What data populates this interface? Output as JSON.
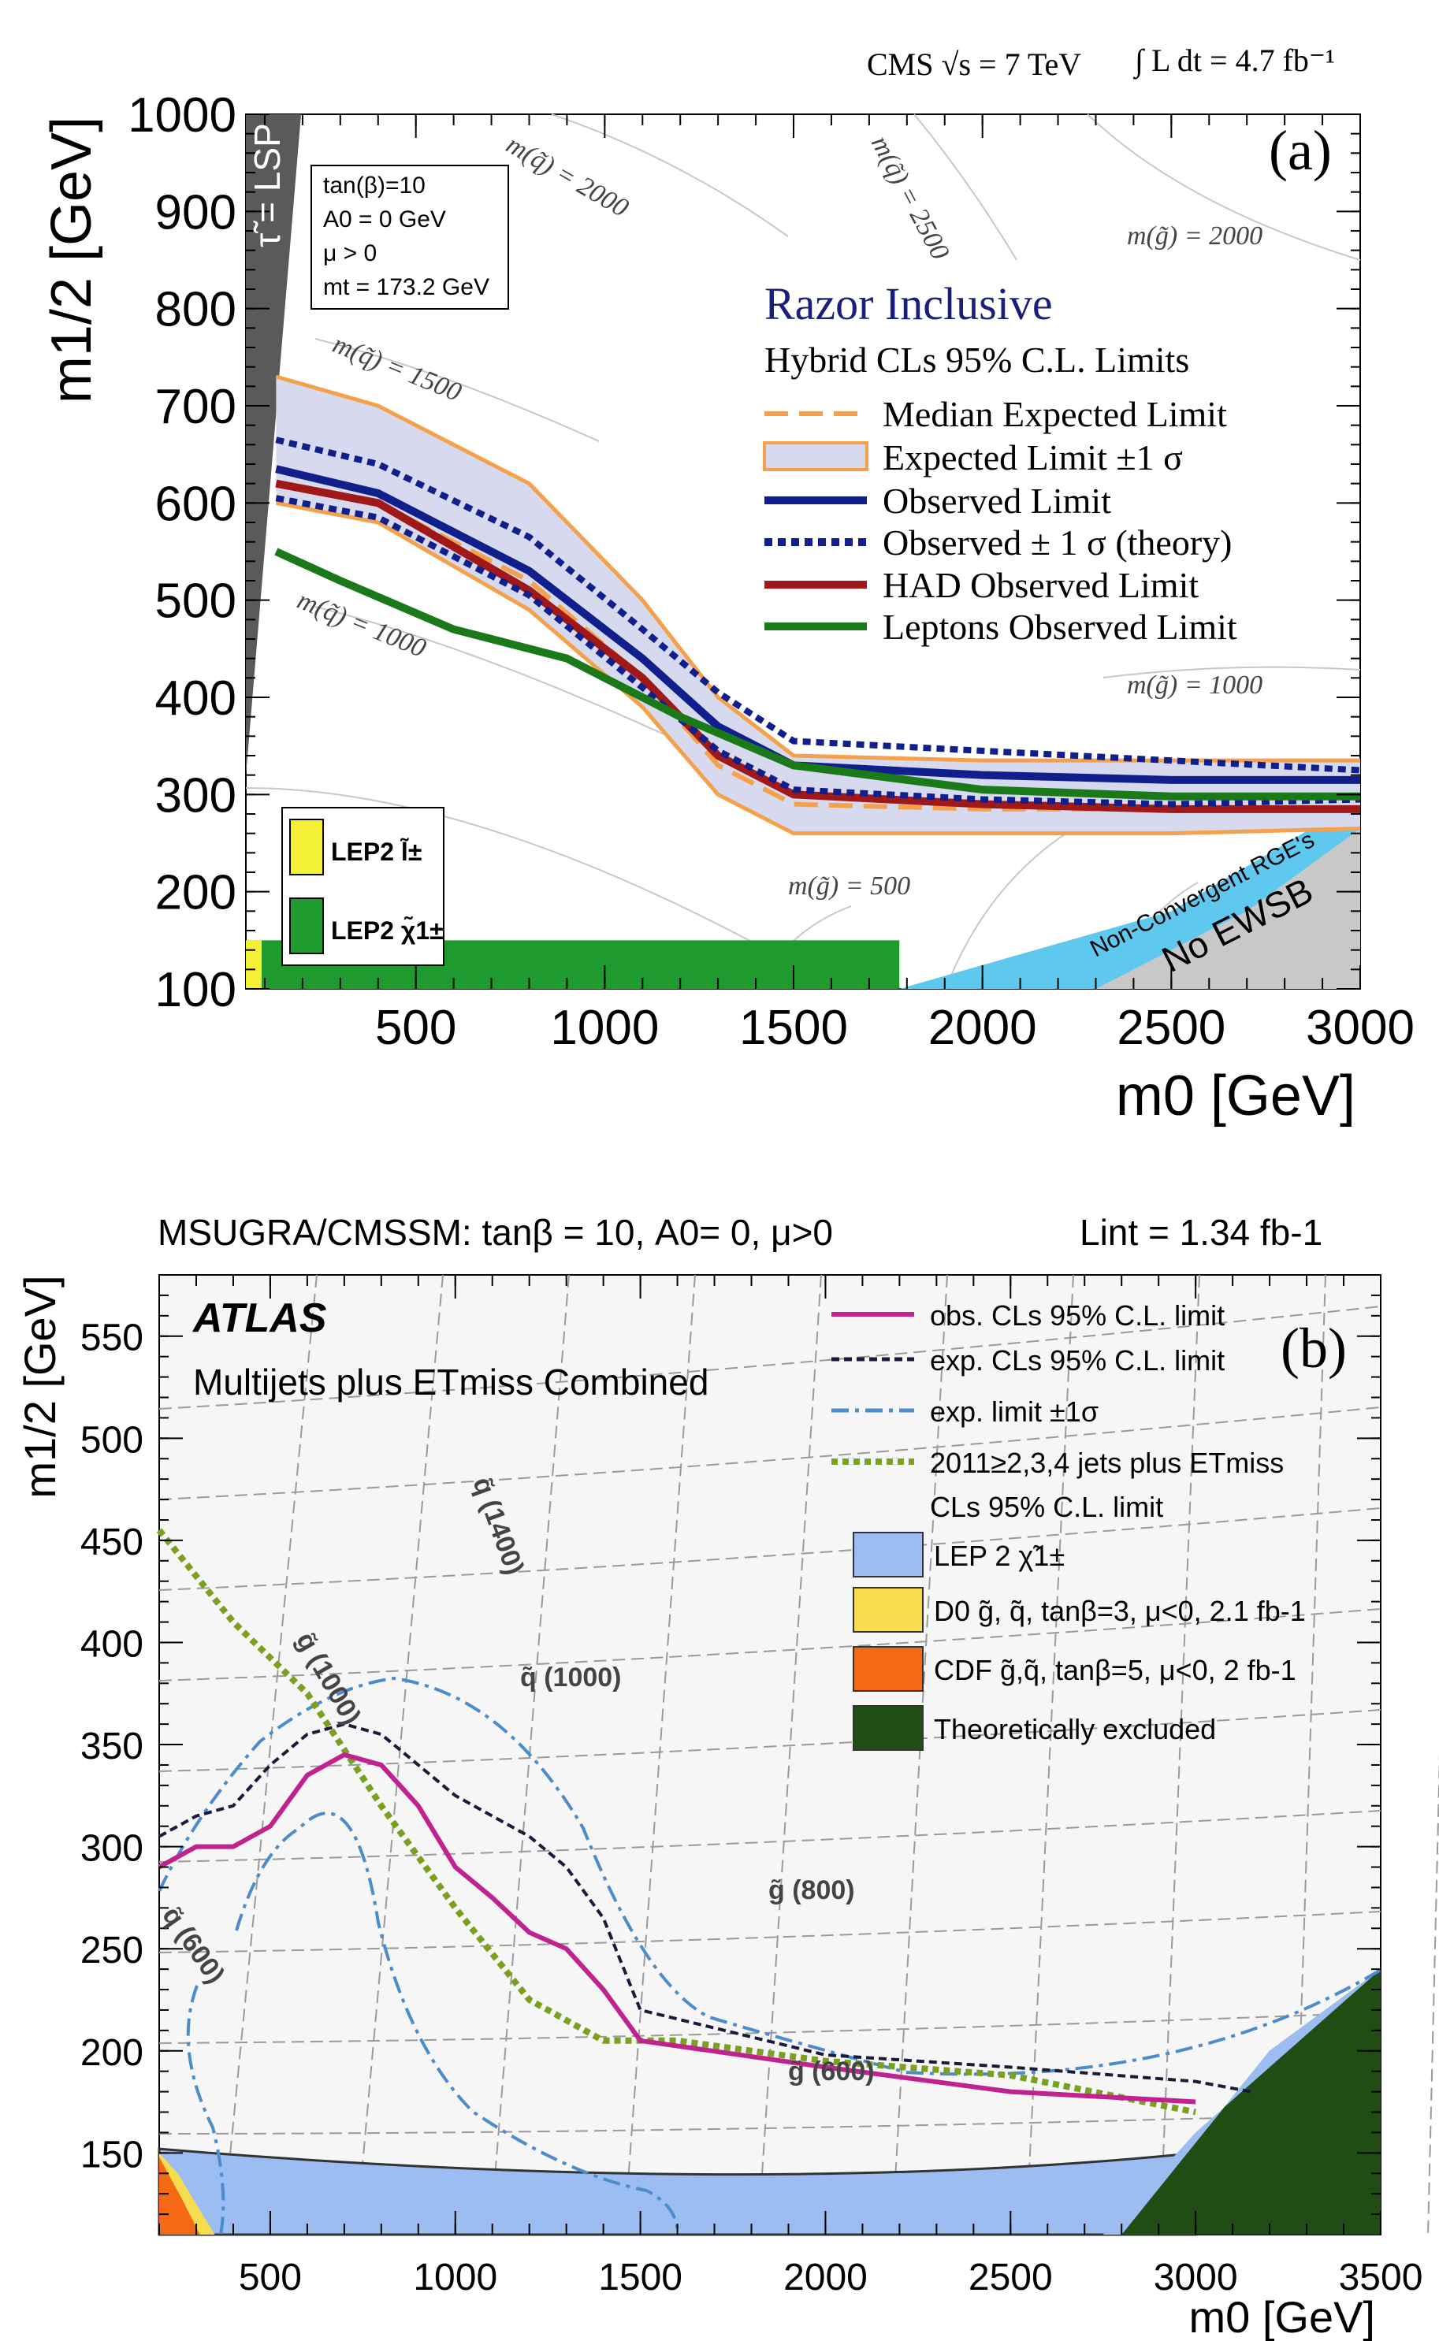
{
  "chart_data": [
    {
      "type": "line",
      "panel_label": "(a)",
      "header_left": "CMS √s = 7 TeV",
      "header_right": "∫ L dt = 4.7 fb⁻¹",
      "xlabel": "m0 [GeV]",
      "ylabel": "m1/2 [GeV]",
      "xlim": [
        50,
        3000
      ],
      "ylim": [
        100,
        1000
      ],
      "x_ticks": [
        "500",
        "1000",
        "1500",
        "2000",
        "2500",
        "3000"
      ],
      "y_ticks": [
        "100",
        "200",
        "300",
        "400",
        "500",
        "600",
        "700",
        "800",
        "900",
        "1000"
      ],
      "params": [
        "tan(β)=10",
        "A0 = 0 GeV",
        "μ > 0",
        "mt = 173.2 GeV"
      ],
      "region_labels": {
        "lsp": "τ̃ = LSP",
        "rge": "Non-Convergent RGE's",
        "ewsb": "No EWSB"
      },
      "legend_title": "Razor Inclusive",
      "legend_subtitle": "Hybrid CLs 95% C.L. Limits",
      "box_legend": [
        "LEP2 l̃±",
        "LEP2 χ̃1±"
      ],
      "contour_labels": [
        "m(q̃) = 2000",
        "m(q̃) = 2500",
        "m(g̃) = 2000",
        "m(q̃) = 1500",
        "m(q̃) = 1000",
        "m(g̃) = 1000",
        "m(g̃) = 500"
      ],
      "series": [
        {
          "name": "Median Expected Limit",
          "color": "#f5a04a",
          "x": [
            130,
            400,
            800,
            1100,
            1300,
            1500,
            2000,
            2500,
            3000
          ],
          "y": [
            620,
            600,
            520,
            420,
            330,
            290,
            285,
            285,
            285
          ]
        },
        {
          "name": "Expected Limit ±1 σ",
          "color": "#f5a04a",
          "upper": {
            "x": [
              130,
              400,
              800,
              1100,
              1300,
              1500,
              2000,
              2500,
              3000
            ],
            "y": [
              730,
              700,
              620,
              500,
              400,
              340,
              335,
              335,
              335
            ]
          },
          "lower": {
            "x": [
              130,
              400,
              800,
              1100,
              1300,
              1500,
              2000,
              2500,
              3000
            ],
            "y": [
              600,
              580,
              490,
              390,
              300,
              260,
              260,
              260,
              265
            ]
          }
        },
        {
          "name": "Observed Limit",
          "color": "#101f8c",
          "x": [
            130,
            400,
            800,
            1100,
            1300,
            1500,
            2000,
            2500,
            3000
          ],
          "y": [
            635,
            610,
            530,
            440,
            370,
            330,
            320,
            315,
            315
          ]
        },
        {
          "name": "Observed ± 1 σ (theory)",
          "color": "#101f8c",
          "upper": {
            "x": [
              130,
              400,
              800,
              1100,
              1300,
              1500,
              2000,
              2500,
              3000
            ],
            "y": [
              665,
              640,
              565,
              470,
              405,
              355,
              345,
              335,
              325
            ]
          },
          "lower": {
            "x": [
              130,
              400,
              800,
              1100,
              1300,
              1500,
              2000,
              2500,
              3000
            ],
            "y": [
              605,
              585,
              505,
              410,
              345,
              305,
              295,
              290,
              295
            ]
          }
        },
        {
          "name": "HAD Observed Limit",
          "color": "#a01818",
          "x": [
            130,
            400,
            800,
            1100,
            1300,
            1500,
            2000,
            2500,
            3000
          ],
          "y": [
            620,
            600,
            510,
            420,
            340,
            300,
            290,
            285,
            285
          ]
        },
        {
          "name": "Leptons Observed Limit",
          "color": "#1a7a1a",
          "x": [
            130,
            300,
            600,
            900,
            1200,
            1500,
            2000,
            2500,
            3000
          ],
          "y": [
            550,
            520,
            470,
            440,
            380,
            330,
            305,
            298,
            298
          ]
        }
      ]
    },
    {
      "type": "line",
      "panel_label": "(b)",
      "title": "MSUGRA/CMSSM: tanβ = 10, A0= 0, μ>0",
      "lumi": "Lint = 1.34 fb-1",
      "brand": "ATLAS",
      "subtitle": "Multijets plus ETmiss Combined",
      "xlabel": "m0 [GeV]",
      "ylabel": "m1/2 [GeV]",
      "xlim": [
        200,
        3500
      ],
      "ylim": [
        110,
        580
      ],
      "x_ticks": [
        "500",
        "1000",
        "1500",
        "2000",
        "2500",
        "3000",
        "3500"
      ],
      "y_ticks": [
        "150",
        "200",
        "250",
        "300",
        "350",
        "400",
        "450",
        "500",
        "550"
      ],
      "contour_labels": [
        "q̃ (1400)",
        "q̃ (1000)",
        "g̃ (1000)",
        "g̃ (800)",
        "g̃ (600)",
        "q̃ (600)"
      ],
      "legend": [
        {
          "label": "obs. CLs 95% C.L. limit",
          "color": "#c0238f",
          "style": "solid"
        },
        {
          "label": "exp. CLs 95% C.L. limit",
          "color": "#1a1a3a",
          "style": "dashed"
        },
        {
          "label": "exp. limit ±1σ",
          "color": "#4a8ccc",
          "style": "dashdot"
        },
        {
          "label": "2011≥2,3,4 jets plus ETmiss",
          "label2": "CLs 95% C.L. limit",
          "color": "#7aa01f",
          "style": "dotted"
        },
        {
          "label": "LEP 2 χ̃1±",
          "color": "#9bbdf2",
          "style": "box"
        },
        {
          "label": "D0 g̃, q̃, tanβ=3, μ<0, 2.1 fb-1",
          "color": "#f7dc4d",
          "style": "box"
        },
        {
          "label": "CDF g̃,q̃, tanβ=5, μ<0, 2 fb-1",
          "color": "#f46a14",
          "style": "box"
        },
        {
          "label": "Theoretically excluded",
          "color": "#1f4d14",
          "style": "box"
        }
      ],
      "series": [
        {
          "name": "obs. CLs 95% C.L. limit",
          "x": [
            200,
            300,
            400,
            500,
            600,
            700,
            800,
            900,
            1000,
            1100,
            1200,
            1300,
            1400,
            1500,
            2000,
            2500,
            3000
          ],
          "y": [
            290,
            300,
            300,
            310,
            335,
            345,
            340,
            320,
            290,
            275,
            258,
            250,
            230,
            205,
            192,
            180,
            175
          ]
        },
        {
          "name": "exp. CLs 95% C.L. limit",
          "x": [
            200,
            300,
            400,
            500,
            600,
            700,
            800,
            900,
            1000,
            1100,
            1200,
            1300,
            1400,
            1500,
            2000,
            2500,
            3000,
            3150
          ],
          "y": [
            305,
            315,
            320,
            340,
            355,
            360,
            355,
            340,
            325,
            315,
            305,
            290,
            265,
            220,
            198,
            192,
            185,
            180
          ]
        },
        {
          "name": "2011≥2,3,4 jets plus ETmiss",
          "x": [
            200,
            400,
            600,
            800,
            1000,
            1200,
            1400,
            1600,
            2000,
            2500,
            3000
          ],
          "y": [
            455,
            410,
            375,
            320,
            270,
            225,
            205,
            205,
            195,
            188,
            170
          ]
        }
      ]
    }
  ]
}
